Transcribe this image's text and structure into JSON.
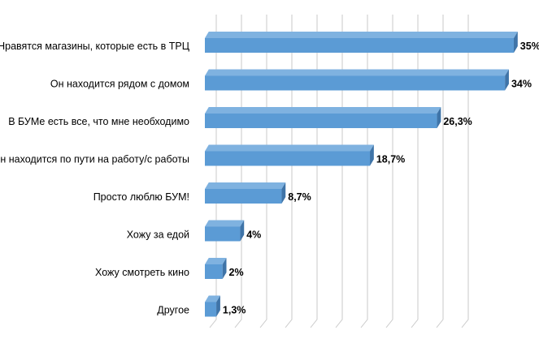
{
  "chart_data": {
    "type": "bar",
    "orientation": "horizontal",
    "categories": [
      "Нравятся магазины, которые есть в ТРЦ",
      "Он находится рядом с домом",
      "В БУМе есть все, что мне необходимо",
      "Он находится по пути на работу/с работы",
      "Просто люблю БУМ!",
      "Хожу за едой",
      "Хожу смотреть кино",
      "Другое"
    ],
    "values": [
      35,
      34,
      26.3,
      18.7,
      8.7,
      4,
      2,
      1.3
    ],
    "value_labels": [
      "35%",
      "34%",
      "26,3%",
      "18,7%",
      "8,7%",
      "4%",
      "2%",
      "1,3%"
    ],
    "xlim": [
      0,
      35
    ],
    "grid": true,
    "bar_color": "#5b9bd5",
    "bar_side_color": "#3f74a8",
    "bar_top_color": "#7fb2e0",
    "title": "",
    "xlabel": "",
    "ylabel": ""
  }
}
